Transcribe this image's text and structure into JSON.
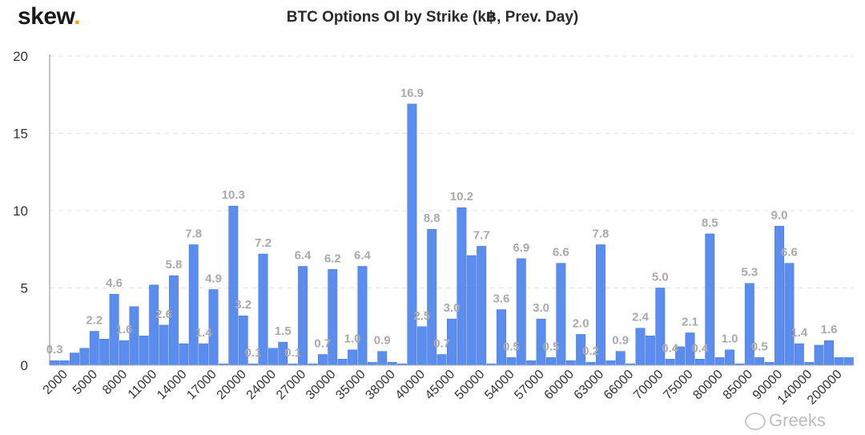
{
  "header": {
    "logo_text": "skew",
    "logo_dot": ".",
    "title": "BTC Options OI by Strike (k฿, Prev. Day)"
  },
  "watermark": {
    "text": "Greeks",
    "icon": "wechat-icon"
  },
  "colors": {
    "bar": "#5b8def",
    "bar_edge": "#3f74dd",
    "label": "#aaaaaa",
    "grid": "#e3e3e3",
    "axis_text": "#333333",
    "brand_dot": "#f0a800"
  },
  "chart_data": {
    "type": "bar",
    "title": "BTC Options OI by Strike (k฿, Prev. Day)",
    "xlabel": "",
    "ylabel": "",
    "ylim": [
      0,
      20
    ],
    "yticks": [
      0,
      5,
      10,
      15,
      20
    ],
    "grid": true,
    "legend": "none",
    "x_tick_labels": [
      "2000",
      "5000",
      "8000",
      "11000",
      "14000",
      "17000",
      "20000",
      "24000",
      "27000",
      "30000",
      "35000",
      "38000",
      "40000",
      "45000",
      "50000",
      "54000",
      "57000",
      "60000",
      "63000",
      "66000",
      "70000",
      "75000",
      "80000",
      "85000",
      "90000",
      "140000",
      "200000"
    ],
    "values": [
      0.3,
      0.3,
      0.8,
      1.1,
      2.2,
      1.7,
      4.6,
      1.6,
      3.8,
      1.9,
      5.2,
      2.6,
      5.8,
      1.4,
      7.8,
      1.4,
      4.9,
      0.1,
      10.3,
      3.2,
      0.1,
      7.2,
      1.1,
      1.5,
      0.1,
      6.4,
      0.1,
      0.7,
      6.2,
      0.4,
      1.0,
      6.4,
      0.2,
      0.9,
      0.2,
      0.1,
      16.9,
      2.5,
      8.8,
      0.7,
      3.0,
      10.2,
      7.1,
      7.7,
      0.1,
      3.6,
      0.5,
      6.9,
      0.3,
      3.0,
      0.5,
      6.6,
      0.3,
      2.0,
      0.2,
      7.8,
      0.3,
      0.9,
      0.1,
      2.4,
      1.9,
      5.0,
      0.4,
      1.2,
      2.1,
      0.4,
      8.5,
      0.5,
      1.0,
      0.1,
      5.3,
      0.5,
      0.2,
      9.0,
      6.6,
      1.4,
      0.2,
      1.3,
      1.6,
      0.5,
      0.5
    ],
    "data_labels": [
      {
        "i": 0,
        "text": "0.3"
      },
      {
        "i": 4,
        "text": "2.2"
      },
      {
        "i": 6,
        "text": "4.6"
      },
      {
        "i": 7,
        "text": "1.6"
      },
      {
        "i": 11,
        "text": "2.6"
      },
      {
        "i": 12,
        "text": "5.8"
      },
      {
        "i": 14,
        "text": "7.8"
      },
      {
        "i": 15,
        "text": "1.4"
      },
      {
        "i": 16,
        "text": "4.9"
      },
      {
        "i": 18,
        "text": "10.3"
      },
      {
        "i": 19,
        "text": "3.2"
      },
      {
        "i": 20,
        "text": "0.1"
      },
      {
        "i": 21,
        "text": "7.2"
      },
      {
        "i": 23,
        "text": "1.5"
      },
      {
        "i": 24,
        "text": "0.1"
      },
      {
        "i": 25,
        "text": "6.4"
      },
      {
        "i": 27,
        "text": "0.7"
      },
      {
        "i": 28,
        "text": "6.2"
      },
      {
        "i": 30,
        "text": "1.0"
      },
      {
        "i": 31,
        "text": "6.4"
      },
      {
        "i": 33,
        "text": "0.9"
      },
      {
        "i": 36,
        "text": "16.9"
      },
      {
        "i": 37,
        "text": "2.5"
      },
      {
        "i": 38,
        "text": "8.8"
      },
      {
        "i": 39,
        "text": "0.7"
      },
      {
        "i": 40,
        "text": "3.0"
      },
      {
        "i": 41,
        "text": "10.2"
      },
      {
        "i": 43,
        "text": "7.7"
      },
      {
        "i": 45,
        "text": "3.6"
      },
      {
        "i": 46,
        "text": "0.5"
      },
      {
        "i": 47,
        "text": "6.9"
      },
      {
        "i": 49,
        "text": "3.0"
      },
      {
        "i": 50,
        "text": "0.5"
      },
      {
        "i": 51,
        "text": "6.6"
      },
      {
        "i": 53,
        "text": "2.0"
      },
      {
        "i": 54,
        "text": "0.2"
      },
      {
        "i": 55,
        "text": "7.8"
      },
      {
        "i": 57,
        "text": "0.9"
      },
      {
        "i": 59,
        "text": "2.4"
      },
      {
        "i": 61,
        "text": "5.0"
      },
      {
        "i": 62,
        "text": "0.4"
      },
      {
        "i": 64,
        "text": "2.1"
      },
      {
        "i": 65,
        "text": "0.4"
      },
      {
        "i": 66,
        "text": "8.5"
      },
      {
        "i": 68,
        "text": "1.0"
      },
      {
        "i": 70,
        "text": "5.3"
      },
      {
        "i": 71,
        "text": "0.5"
      },
      {
        "i": 73,
        "text": "9.0"
      },
      {
        "i": 74,
        "text": "6.6"
      },
      {
        "i": 75,
        "text": "1.4"
      },
      {
        "i": 78,
        "text": "1.6"
      }
    ]
  }
}
